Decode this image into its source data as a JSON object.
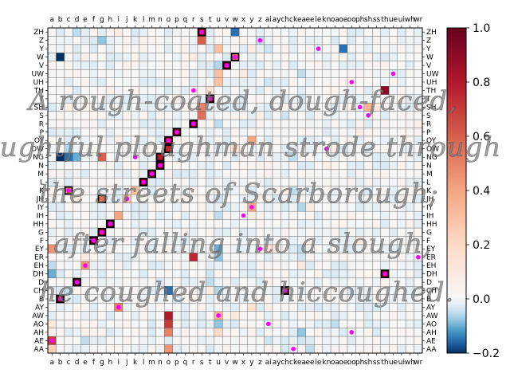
{
  "chart_data": {
    "type": "heatmap",
    "title": "",
    "xlabel": "",
    "ylabel": "",
    "x_labels": [
      "a",
      "b",
      "c",
      "d",
      "e",
      "f",
      "g",
      "h",
      "i",
      "j",
      "k",
      "l",
      "m",
      "n",
      "o",
      "p",
      "q",
      "r",
      "s",
      "t",
      "u",
      "v",
      "w",
      "x",
      "y",
      "z",
      "ai",
      "ay",
      "ch",
      "ck",
      "ea",
      "ee",
      "ie",
      "kn",
      "oa",
      "oe",
      "oo",
      "ph",
      "sh",
      "ss",
      "th",
      "ue",
      "ui",
      "wh",
      "wr"
    ],
    "y_labels_top_to_bottom": [
      "ZH",
      "Z",
      "Y",
      "W",
      "V",
      "UW",
      "UH",
      "TH",
      "T",
      "SH",
      "S",
      "R",
      "P",
      "OY",
      "OW",
      "NG",
      "N",
      "M",
      "L",
      "K",
      "JH",
      "IY",
      "IH",
      "HH",
      "G",
      "F",
      "EY",
      "ER",
      "EH",
      "DH",
      "D",
      "CH",
      "B",
      "AY",
      "AW",
      "AO",
      "AH",
      "AE",
      "AA"
    ],
    "colorbar": {
      "min": -0.2,
      "max": 1.0,
      "ticks": [
        -0.2,
        0.0,
        0.2,
        0.4,
        0.6,
        0.8,
        1.0
      ],
      "tick_labels": [
        "−0.2",
        "0.0",
        "0.2",
        "0.4",
        "0.6",
        "0.8",
        "1.0"
      ],
      "colormap": "RdBu_r"
    },
    "cells": [
      [
        "ZH",
        "s",
        0.85
      ],
      [
        "ZH",
        "w",
        -0.15
      ],
      [
        "ZH",
        "d",
        -0.05
      ],
      [
        "ZH",
        "i",
        0.08
      ],
      [
        "Z",
        "s",
        0.6
      ],
      [
        "Z",
        "g",
        -0.08
      ],
      [
        "Z",
        "z",
        -0.05
      ],
      [
        "Z",
        "l",
        0.05
      ],
      [
        "Y",
        "u",
        0.3
      ],
      [
        "Y",
        "oe",
        -0.15
      ],
      [
        "Y",
        "y",
        0.08
      ],
      [
        "Y",
        "ai",
        -0.04
      ],
      [
        "W",
        "b",
        -0.25
      ],
      [
        "W",
        "w",
        0.5
      ],
      [
        "W",
        "e",
        0.06
      ],
      [
        "W",
        "r",
        0.08
      ],
      [
        "V",
        "v",
        0.95
      ],
      [
        "V",
        "u",
        -0.06
      ],
      [
        "V",
        "j",
        0.05
      ],
      [
        "UW",
        "u",
        0.3
      ],
      [
        "UW",
        "x",
        0.08
      ],
      [
        "UW",
        "ea",
        -0.05
      ],
      [
        "UH",
        "u",
        0.3
      ],
      [
        "UH",
        "oo",
        0.05
      ],
      [
        "UH",
        "ai",
        -0.04
      ],
      [
        "TH",
        "th",
        0.9
      ],
      [
        "TH",
        "t",
        0.15
      ],
      [
        "TH",
        "h",
        0.06
      ],
      [
        "T",
        "t",
        0.9
      ],
      [
        "T",
        "ea",
        -0.04
      ],
      [
        "SH",
        "sh",
        0.35
      ],
      [
        "SH",
        "s",
        0.5
      ],
      [
        "SH",
        "ss",
        0.1
      ],
      [
        "SH",
        "c",
        0.05
      ],
      [
        "S",
        "s",
        0.55
      ],
      [
        "S",
        "ch",
        -0.04
      ],
      [
        "S",
        "z",
        0.06
      ],
      [
        "R",
        "r",
        0.95
      ],
      [
        "R",
        "u",
        -0.05
      ],
      [
        "R",
        "wr",
        0.05
      ],
      [
        "P",
        "p",
        0.95
      ],
      [
        "P",
        "ph",
        0.08
      ],
      [
        "P",
        "a",
        -0.03
      ],
      [
        "OY",
        "o",
        0.85
      ],
      [
        "OY",
        "y",
        0.4
      ],
      [
        "OY",
        "i",
        0.06
      ],
      [
        "OW",
        "o",
        0.75
      ],
      [
        "OW",
        "w",
        0.2
      ],
      [
        "OW",
        "oa",
        0.08
      ],
      [
        "OW",
        "c",
        -0.06
      ],
      [
        "NG",
        "n",
        0.8
      ],
      [
        "NG",
        "g",
        0.6
      ],
      [
        "NG",
        "b",
        -0.2
      ],
      [
        "NG",
        "c",
        -0.15
      ],
      [
        "NG",
        "d",
        -0.1
      ],
      [
        "NG",
        "ck",
        -0.05
      ],
      [
        "N",
        "n",
        0.95
      ],
      [
        "N",
        "kn",
        0.06
      ],
      [
        "M",
        "m",
        0.95
      ],
      [
        "M",
        "p",
        -0.03
      ],
      [
        "L",
        "l",
        0.95
      ],
      [
        "L",
        "a",
        -0.03
      ],
      [
        "K",
        "c",
        0.5
      ],
      [
        "K",
        "k",
        0.3
      ],
      [
        "K",
        "ck",
        -0.05
      ],
      [
        "K",
        "ch",
        0.05
      ],
      [
        "JH",
        "g",
        0.55
      ],
      [
        "JH",
        "j",
        0.3
      ],
      [
        "JH",
        "d",
        0.08
      ],
      [
        "JH",
        "u",
        -0.04
      ],
      [
        "IY",
        "y",
        0.4
      ],
      [
        "IY",
        "ee",
        0.1
      ],
      [
        "IY",
        "ea",
        -0.06
      ],
      [
        "IY",
        "i",
        0.05
      ],
      [
        "IH",
        "i",
        0.4
      ],
      [
        "IH",
        "u",
        -0.05
      ],
      [
        "IH",
        "y",
        0.08
      ],
      [
        "HH",
        "h",
        0.95
      ],
      [
        "HH",
        "wh",
        0.05
      ],
      [
        "G",
        "g",
        0.85
      ],
      [
        "G",
        "q",
        0.05
      ],
      [
        "F",
        "f",
        0.95
      ],
      [
        "F",
        "ph",
        0.1
      ],
      [
        "F",
        "gh",
        0.04
      ],
      [
        "EY",
        "a",
        0.45
      ],
      [
        "EY",
        "ai",
        0.15
      ],
      [
        "EY",
        "ay",
        0.1
      ],
      [
        "EY",
        "ea",
        -0.05
      ],
      [
        "EY",
        "u",
        -0.1
      ],
      [
        "ER",
        "r",
        0.75
      ],
      [
        "ER",
        "e",
        0.1
      ],
      [
        "ER",
        "u",
        -0.08
      ],
      [
        "ER",
        "ea",
        -0.04
      ],
      [
        "EH",
        "e",
        0.45
      ],
      [
        "EH",
        "ea",
        0.1
      ],
      [
        "EH",
        "a",
        -0.05
      ],
      [
        "DH",
        "th",
        0.9
      ],
      [
        "DH",
        "a",
        -0.1
      ],
      [
        "DH",
        "t",
        -0.04
      ],
      [
        "D",
        "d",
        0.95
      ],
      [
        "D",
        "t",
        -0.05
      ],
      [
        "CH",
        "ch",
        0.95
      ],
      [
        "CH",
        "c",
        -0.05
      ],
      [
        "CH",
        "o",
        -0.15
      ],
      [
        "CH",
        "t",
        0.1
      ],
      [
        "CH",
        "u",
        -0.06
      ],
      [
        "B",
        "b",
        0.95
      ],
      [
        "B",
        "p",
        -0.03
      ],
      [
        "AY",
        "i",
        0.5
      ],
      [
        "AY",
        "y",
        0.15
      ],
      [
        "AY",
        "ai",
        0.05
      ],
      [
        "AW",
        "o",
        0.8
      ],
      [
        "AW",
        "u",
        0.35
      ],
      [
        "AW",
        "w",
        0.1
      ],
      [
        "AO",
        "o",
        0.7
      ],
      [
        "AO",
        "a",
        0.1
      ],
      [
        "AO",
        "u",
        -0.08
      ],
      [
        "AO",
        "oa",
        -0.05
      ],
      [
        "AH",
        "o",
        0.5
      ],
      [
        "AH",
        "u",
        0.2
      ],
      [
        "AH",
        "e",
        0.05
      ],
      [
        "AH",
        "ea",
        -0.08
      ],
      [
        "AH",
        "a",
        0.06
      ],
      [
        "AE",
        "a",
        0.7
      ],
      [
        "AE",
        "e",
        -0.05
      ],
      [
        "AE",
        "ea",
        -0.04
      ],
      [
        "AE",
        "ai",
        -0.04
      ],
      [
        "AA",
        "o",
        0.45
      ],
      [
        "AA",
        "a",
        0.25
      ],
      [
        "AA",
        "ee",
        -0.05
      ]
    ],
    "outlined_cells": [
      [
        "ZH",
        "s"
      ],
      [
        "W",
        "w"
      ],
      [
        "V",
        "v"
      ],
      [
        "T",
        "t"
      ],
      [
        "R",
        "r"
      ],
      [
        "P",
        "p"
      ],
      [
        "OY",
        "o"
      ],
      [
        "OW",
        "o"
      ],
      [
        "NG",
        "n"
      ],
      [
        "N",
        "n"
      ],
      [
        "M",
        "m"
      ],
      [
        "L",
        "l"
      ],
      [
        "K",
        "c"
      ],
      [
        "JH",
        "g"
      ],
      [
        "HH",
        "h"
      ],
      [
        "G",
        "g"
      ],
      [
        "F",
        "f"
      ],
      [
        "DH",
        "th"
      ],
      [
        "D",
        "d"
      ],
      [
        "CH",
        "ch"
      ],
      [
        "B",
        "b"
      ]
    ],
    "markers": [
      [
        "ZH",
        "s"
      ],
      [
        "Z",
        "z"
      ],
      [
        "Y",
        "ie"
      ],
      [
        "W",
        "w"
      ],
      [
        "V",
        "v"
      ],
      [
        "UW",
        "ue"
      ],
      [
        "UH",
        "oo"
      ],
      [
        "TH",
        "r"
      ],
      [
        "T",
        "t"
      ],
      [
        "SH",
        "ph"
      ],
      [
        "S",
        "sh"
      ],
      [
        "R",
        "r"
      ],
      [
        "P",
        "p"
      ],
      [
        "OY",
        "o"
      ],
      [
        "OW",
        "kn"
      ],
      [
        "NG",
        "k"
      ],
      [
        "N",
        "n"
      ],
      [
        "M",
        "m"
      ],
      [
        "L",
        "l"
      ],
      [
        "K",
        "c"
      ],
      [
        "JH",
        "j"
      ],
      [
        "IY",
        "y"
      ],
      [
        "IH",
        "x"
      ],
      [
        "HH",
        "h"
      ],
      [
        "G",
        "g"
      ],
      [
        "F",
        "f"
      ],
      [
        "EY",
        "z"
      ],
      [
        "ER",
        "wr"
      ],
      [
        "EH",
        "e"
      ],
      [
        "DH",
        "th"
      ],
      [
        "D",
        "d"
      ],
      [
        "CH",
        "ch"
      ],
      [
        "B",
        "b"
      ],
      [
        "AY",
        "i"
      ],
      [
        "AW",
        "u"
      ],
      [
        "AO",
        "ai"
      ],
      [
        "AH",
        "oo"
      ],
      [
        "AE",
        "a"
      ],
      [
        "AA",
        "ck"
      ]
    ],
    "annotation_lines": [
      "A rough-coated, dough-faced,",
      "thoughtful ploughman strode through",
      "the streets of Scarborough;",
      "after falling into a slough,",
      "he coughed and hiccoughed."
    ]
  }
}
